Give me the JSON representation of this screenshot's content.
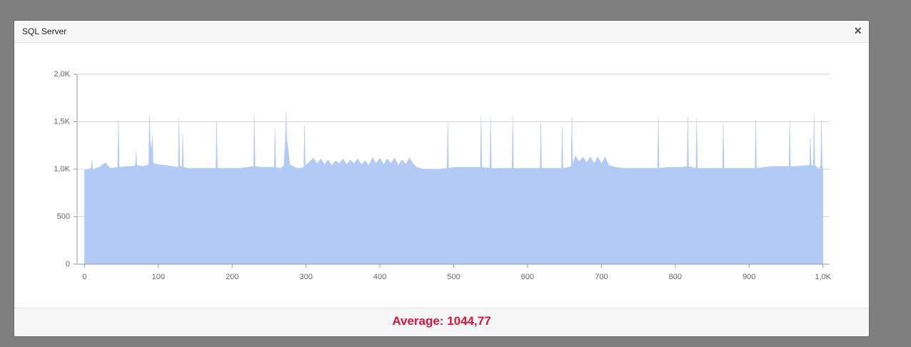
{
  "window": {
    "title": "SQL Server",
    "close": "×"
  },
  "chart_data": {
    "type": "area",
    "color": "#b3cbf4",
    "grid": true,
    "xlim": [
      -10,
      1009
    ],
    "ylim": [
      0,
      2000
    ],
    "xticks": [
      0,
      100,
      200,
      300,
      400,
      500,
      600,
      700,
      800,
      900,
      {
        "value": 1000,
        "label": "1,0K"
      }
    ],
    "yticks": [
      0,
      500,
      {
        "value": 1000,
        "label": "1,0K"
      },
      {
        "value": 1500,
        "label": "1,5K"
      },
      {
        "value": 2000,
        "label": "2,0K"
      }
    ],
    "x": [
      0,
      5,
      9,
      10,
      11,
      20,
      28,
      35,
      45,
      46,
      47,
      55,
      65,
      69,
      70,
      71,
      80,
      87,
      88,
      89,
      91,
      92,
      93,
      100,
      110,
      120,
      127,
      128,
      129,
      132,
      133,
      134,
      140,
      150,
      160,
      170,
      178,
      179,
      180,
      190,
      200,
      210,
      220,
      229,
      230,
      231,
      240,
      250,
      257,
      258,
      259,
      265,
      270,
      272,
      273,
      274,
      276,
      278,
      285,
      290,
      297,
      298,
      299,
      305,
      310,
      315,
      320,
      325,
      330,
      335,
      340,
      345,
      350,
      355,
      360,
      365,
      370,
      375,
      380,
      385,
      390,
      395,
      400,
      405,
      410,
      415,
      420,
      425,
      430,
      435,
      440,
      445,
      450,
      460,
      470,
      480,
      491,
      492,
      493,
      500,
      510,
      520,
      536,
      537,
      538,
      549,
      550,
      551,
      560,
      570,
      579,
      580,
      581,
      590,
      600,
      610,
      617,
      618,
      619,
      630,
      640,
      646,
      647,
      648,
      655,
      659,
      660,
      661,
      665,
      670,
      675,
      680,
      685,
      690,
      695,
      700,
      705,
      710,
      720,
      730,
      740,
      750,
      760,
      770,
      776,
      777,
      778,
      790,
      800,
      810,
      816,
      817,
      818,
      828,
      829,
      830,
      840,
      850,
      864,
      865,
      866,
      880,
      890,
      900,
      908,
      909,
      910,
      920,
      930,
      940,
      954,
      955,
      956,
      965,
      975,
      982,
      983,
      984,
      987,
      988,
      989,
      995,
      997,
      998,
      999,
      1000
    ],
    "values": [
      990,
      1000,
      1010,
      1100,
      1000,
      1020,
      1070,
      1010,
      1020,
      1520,
      1020,
      1030,
      1030,
      1040,
      1180,
      1040,
      1030,
      1050,
      1570,
      1300,
      1200,
      1350,
      1060,
      1050,
      1040,
      1030,
      1020,
      1540,
      1030,
      1030,
      1370,
      1020,
      1010,
      1010,
      1010,
      1010,
      1010,
      1500,
      1010,
      1010,
      1010,
      1010,
      1020,
      1030,
      1550,
      1030,
      1020,
      1020,
      1020,
      1420,
      1020,
      1010,
      1040,
      1300,
      1610,
      1300,
      1200,
      1050,
      1020,
      1010,
      1020,
      1460,
      1040,
      1080,
      1120,
      1060,
      1110,
      1050,
      1100,
      1040,
      1090,
      1060,
      1110,
      1050,
      1100,
      1060,
      1110,
      1050,
      1090,
      1040,
      1120,
      1060,
      1120,
      1050,
      1110,
      1060,
      1120,
      1040,
      1100,
      1050,
      1120,
      1060,
      1020,
      1000,
      1000,
      1000,
      1010,
      1500,
      1010,
      1020,
      1020,
      1020,
      1020,
      1550,
      1020,
      1010,
      1550,
      1010,
      1010,
      1010,
      1010,
      1550,
      1010,
      1010,
      1010,
      1010,
      1010,
      1480,
      1010,
      1010,
      1010,
      1010,
      1440,
      1010,
      1020,
      1030,
      1550,
      1050,
      1140,
      1080,
      1130,
      1070,
      1130,
      1060,
      1130,
      1060,
      1130,
      1040,
      1020,
      1010,
      1010,
      1010,
      1010,
      1010,
      1010,
      1550,
      1010,
      1020,
      1020,
      1020,
      1030,
      1550,
      1030,
      1010,
      1540,
      1010,
      1010,
      1010,
      1010,
      1480,
      1010,
      1010,
      1010,
      1010,
      1010,
      1520,
      1010,
      1020,
      1030,
      1030,
      1030,
      1520,
      1030,
      1030,
      1040,
      1040,
      1330,
      1040,
      1040,
      1570,
      1040,
      1000,
      1040,
      1520,
      1040,
      1000
    ]
  },
  "footer": {
    "average": "Average: 1044,77"
  }
}
